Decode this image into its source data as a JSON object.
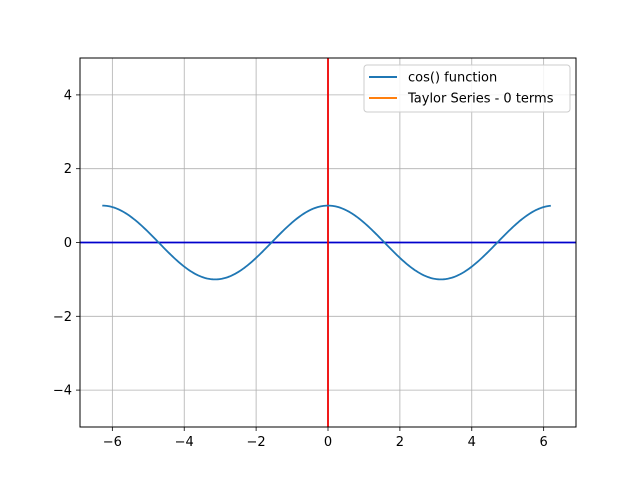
{
  "chart_data": {
    "type": "line",
    "title": "",
    "xlabel": "",
    "ylabel": "",
    "xlim": [
      -6.9,
      6.9
    ],
    "ylim": [
      -5,
      5
    ],
    "grid": true,
    "legend_placement": "top-right",
    "x_ticks": [
      -6,
      -4,
      -2,
      0,
      2,
      4,
      6
    ],
    "x_tick_labels": [
      "−6",
      "−4",
      "−2",
      "0",
      "2",
      "4",
      "6"
    ],
    "y_ticks": [
      -4,
      -2,
      0,
      2,
      4
    ],
    "y_tick_labels": [
      "−4",
      "−2",
      "0",
      "2",
      "4"
    ],
    "series": [
      {
        "name": "cos() function",
        "color": "#1f77b4",
        "function": "cos",
        "x_start": -6.28,
        "x_end": 6.2
      },
      {
        "name": "Taylor Series - 0 terms",
        "color": "#ff7f0e",
        "values": []
      }
    ],
    "reference_lines": [
      {
        "orientation": "horizontal",
        "value": 0,
        "color": "#0000cc"
      },
      {
        "orientation": "vertical",
        "value": 0,
        "color": "#ee0000"
      }
    ]
  }
}
